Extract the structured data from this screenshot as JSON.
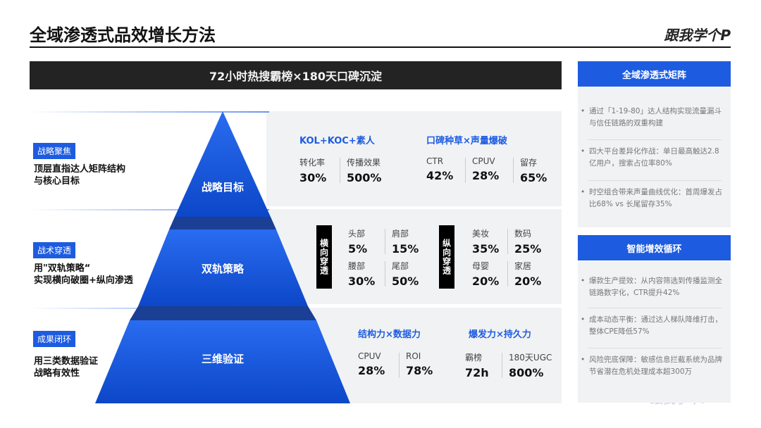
{
  "header": {
    "title": "全域渗透式品效增长方法",
    "logo": "跟我学个P"
  },
  "banner": "72小时热搜霸榜×180天口碑沉淀",
  "levels": [
    {
      "tag": "战略聚焦",
      "desc": [
        "顶层直指达人矩阵结构",
        "与核心目标"
      ],
      "pyramid": "战略目标",
      "groups": [
        {
          "title": "KOL+KOC+素人",
          "metrics": [
            {
              "label": "转化率",
              "value": "30%"
            },
            {
              "label": "传播效果",
              "value": "500%"
            }
          ]
        },
        {
          "title": "口碑种草×声量爆破",
          "metrics": [
            {
              "label": "CTR",
              "value": "42%"
            },
            {
              "label": "CPUV",
              "value": "28%"
            },
            {
              "label": "留存",
              "value": "65%"
            }
          ]
        }
      ]
    },
    {
      "tag": "战术穿透",
      "desc": [
        "用\"双轨策略“",
        "实现横向破圈+纵向渗透"
      ],
      "pyramid": "双轨策略",
      "groups": [
        {
          "title": "横向穿透",
          "metrics": [
            {
              "label": "头部",
              "value": "5%"
            },
            {
              "label": "肩部",
              "value": "15%"
            },
            {
              "label": "腰部",
              "value": "30%"
            },
            {
              "label": "尾部",
              "value": "50%"
            }
          ]
        },
        {
          "title": "纵向穿透",
          "metrics": [
            {
              "label": "美妆",
              "value": "35%"
            },
            {
              "label": "数码",
              "value": "25%"
            },
            {
              "label": "母婴",
              "value": "20%"
            },
            {
              "label": "家居",
              "value": "20%"
            }
          ]
        }
      ]
    },
    {
      "tag": "成果闭环",
      "desc": [
        "用三类数据验证",
        "战略有效性"
      ],
      "pyramid": "三维验证",
      "groups": [
        {
          "title": "结构力×数据力",
          "metrics": [
            {
              "label": "CPUV",
              "value": "28%"
            },
            {
              "label": "ROI",
              "value": "78%"
            }
          ]
        },
        {
          "title": "爆发力×持久力",
          "metrics": [
            {
              "label": "霸榜",
              "value": "72h"
            },
            {
              "label": "180天UGC",
              "value": "800%"
            }
          ]
        }
      ]
    }
  ],
  "sidebar": [
    {
      "title": "全域渗透式矩阵",
      "items": [
        "通过「1-19-80」达人结构实现流量漏斗与信任链路的双重构建",
        "四大平台差异化作战：单日最高触达2.8亿用户，搜索占位率80%",
        "时空组合带来声量曲线优化：首周爆发占比68% vs 长尾留存35%"
      ]
    },
    {
      "title": "智能增效循环",
      "items": [
        "爆款生产提效：从内容筛选到传播监测全链路数字化，CTR提升42%",
        "成本动态平衡：通过达人梯队降维打击，整体CPE降低57%",
        "风险兜底保障：敏感信息拦截系统为品牌节省潜在危机处理成本超300万"
      ]
    }
  ],
  "watermark": "跟我学个P"
}
